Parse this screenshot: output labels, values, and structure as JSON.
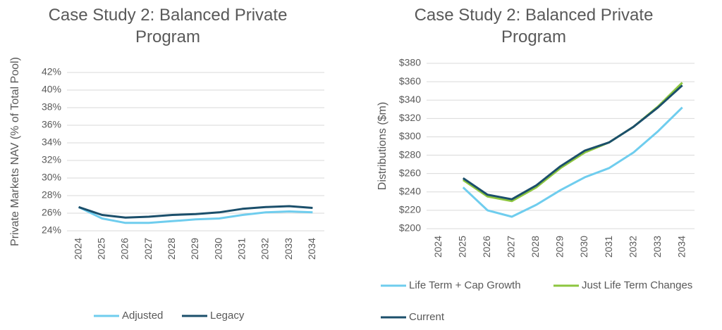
{
  "chart_data": [
    {
      "type": "line",
      "title": "Case Study 2: Balanced Private Program",
      "y_label": "Private Markets NAV (% of Total Pool)",
      "categories": [
        "2024",
        "2025",
        "2026",
        "2027",
        "2028",
        "2029",
        "2030",
        "2031",
        "2032",
        "2033",
        "2034"
      ],
      "series": [
        {
          "name": "Adjusted",
          "color": "#6fcdee",
          "values": [
            26.7,
            25.4,
            24.9,
            24.9,
            25.1,
            25.3,
            25.4,
            25.8,
            26.1,
            26.2,
            26.1
          ]
        },
        {
          "name": "Legacy",
          "color": "#1b4f6b",
          "values": [
            26.7,
            25.8,
            25.5,
            25.6,
            25.8,
            25.9,
            26.1,
            26.5,
            26.7,
            26.8,
            26.6
          ]
        }
      ],
      "ylim": [
        24,
        42
      ],
      "yticks": [
        {
          "value": 24,
          "label": "24%"
        },
        {
          "value": 26,
          "label": "26%"
        },
        {
          "value": 28,
          "label": "28%"
        },
        {
          "value": 30,
          "label": "30%"
        },
        {
          "value": 32,
          "label": "32%"
        },
        {
          "value": 34,
          "label": "34%"
        },
        {
          "value": 36,
          "label": "36%"
        },
        {
          "value": 38,
          "label": "38%"
        },
        {
          "value": 40,
          "label": "40%"
        },
        {
          "value": 42,
          "label": "42%"
        }
      ],
      "grid": true,
      "legend": "bottom"
    },
    {
      "type": "line",
      "title": "Case Study 2: Balanced Private Program",
      "y_label": "Distributions ($m)",
      "categories": [
        "2024",
        "2025",
        "2026",
        "2027",
        "2028",
        "2029",
        "2030",
        "2031",
        "2032",
        "2033",
        "2034"
      ],
      "series": [
        {
          "name": "Life Term + Cap Growth",
          "color": "#6fcdee",
          "values": [
            null,
            245,
            220,
            213,
            226,
            242,
            256,
            266,
            283,
            306,
            332
          ]
        },
        {
          "name": "Just Life Term Changes",
          "color": "#8dc63f",
          "values": [
            null,
            253,
            235,
            230,
            245,
            266,
            283,
            294,
            311,
            333,
            359
          ]
        },
        {
          "name": "Current",
          "color": "#1b4f6b",
          "values": [
            null,
            255,
            237,
            232,
            247,
            268,
            285,
            294,
            311,
            332,
            356
          ]
        }
      ],
      "ylim": [
        200,
        380
      ],
      "yticks": [
        {
          "value": 200,
          "label": "$200"
        },
        {
          "value": 220,
          "label": "$220"
        },
        {
          "value": 240,
          "label": "$240"
        },
        {
          "value": 260,
          "label": "$260"
        },
        {
          "value": 280,
          "label": "$280"
        },
        {
          "value": 300,
          "label": "$300"
        },
        {
          "value": 320,
          "label": "$320"
        },
        {
          "value": 340,
          "label": "$340"
        },
        {
          "value": 360,
          "label": "$360"
        },
        {
          "value": 380,
          "label": "$380"
        }
      ],
      "grid": true,
      "legend": "bottom"
    }
  ]
}
